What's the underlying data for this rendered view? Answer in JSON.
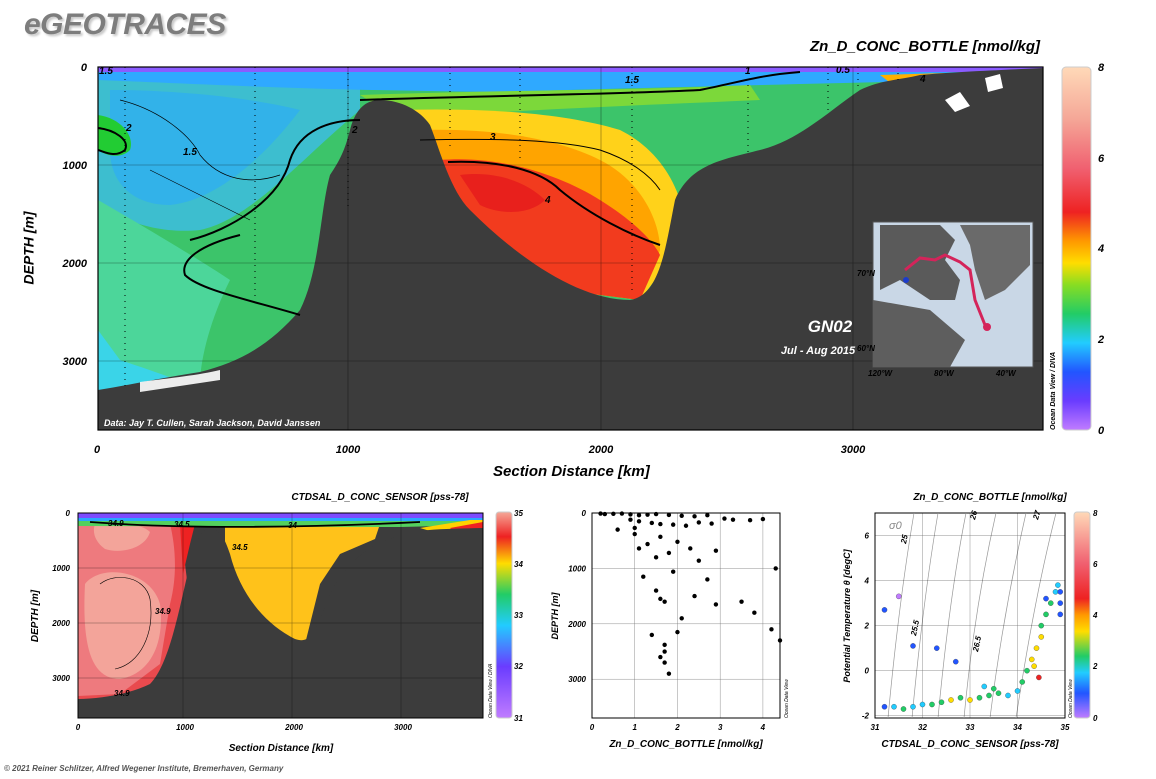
{
  "brand": "eGEOTRACES",
  "copyright": "© 2021 Reiner Schlitzer, Alfred Wegener Institute, Bremerhaven, Germany",
  "colors": {
    "land": "#3c3c3c",
    "colorbar_stops": [
      "#c07cff",
      "#6a3cff",
      "#2255ff",
      "#22ccff",
      "#22cc55",
      "#99dd22",
      "#ffcc00",
      "#ff9900",
      "#ee2222",
      "#f06070",
      "#f5b5a0",
      "#ffd9b8"
    ]
  },
  "main": {
    "title": "Zn_D_CONC_BOTTLE [nmol/kg]",
    "xlabel": "Section Distance [km]",
    "ylabel": "DEPTH [m]",
    "cruise": "GN02",
    "cruise_date": "Jul - Aug 2015",
    "credit": "Data: Jay T. Cullen, Sarah Jackson, David Janssen",
    "odv_tag": "Ocean Data View / DIVA",
    "x_ticks": [
      "0",
      "1000",
      "2000",
      "3000"
    ],
    "y_ticks": [
      "0",
      "1000",
      "2000",
      "3000"
    ],
    "colorbar_ticks": [
      "0",
      "2",
      "4",
      "6",
      "8"
    ],
    "contour_labels": [
      "1.5",
      "2",
      "1.5",
      "2",
      "3",
      "1.5",
      "4",
      "1",
      "0.5",
      "4"
    ],
    "map_ticks": [
      "70°N",
      "60°N",
      "120°W",
      "80°W",
      "40°W"
    ]
  },
  "sal": {
    "title": "CTDSAL_D_CONC_SENSOR [pss-78]",
    "xlabel": "Section Distance [km]",
    "ylabel": "DEPTH [m]",
    "odv_tag": "Ocean Data View / DIVA",
    "x_ticks": [
      "0",
      "1000",
      "2000",
      "3000"
    ],
    "y_ticks": [
      "0",
      "1000",
      "2000",
      "3000"
    ],
    "colorbar_ticks": [
      "31",
      "32",
      "33",
      "34",
      "35"
    ],
    "contour_labels": [
      "34.9",
      "34.5",
      "34",
      "34.5",
      "34.9",
      "34.9"
    ]
  },
  "scatter": {
    "xlabel": "Zn_D_CONC_BOTTLE [nmol/kg]",
    "ylabel": "DEPTH [m]",
    "odv_tag": "Ocean Data View",
    "x_ticks": [
      "0",
      "1",
      "2",
      "3",
      "4"
    ],
    "y_ticks": [
      "0",
      "1000",
      "2000",
      "3000"
    ]
  },
  "ts": {
    "title": "Zn_D_CONC_BOTTLE [nmol/kg]",
    "xlabel": "CTDSAL_D_CONC_SENSOR [pss-78]",
    "ylabel": "Potential Temperature θ [degC]",
    "sigma_label": "σ0",
    "odv_tag": "Ocean Data View",
    "x_ticks": [
      "31",
      "32",
      "33",
      "34",
      "35"
    ],
    "y_ticks": [
      "-2",
      "0",
      "2",
      "4",
      "6"
    ],
    "colorbar_ticks": [
      "0",
      "2",
      "4",
      "6",
      "8"
    ],
    "isopycnal_labels": [
      "25",
      "25.5",
      "26",
      "26.5",
      "27"
    ]
  },
  "chart_data": [
    {
      "type": "heatmap",
      "title": "Zn_D_CONC_BOTTLE [nmol/kg]",
      "xlabel": "Section Distance [km]",
      "ylabel": "DEPTH [m]",
      "xlim": [
        0,
        3770
      ],
      "ylim": [
        3700,
        0
      ],
      "colorbar_range": [
        0,
        8
      ],
      "bathymetry": [
        [
          0,
          3300
        ],
        [
          200,
          3150
        ],
        [
          500,
          2900
        ],
        [
          800,
          2300
        ],
        [
          900,
          1100
        ],
        [
          1000,
          600
        ],
        [
          1100,
          330
        ],
        [
          1250,
          350
        ],
        [
          1400,
          750
        ],
        [
          1600,
          1700
        ],
        [
          1900,
          2200
        ],
        [
          2100,
          2350
        ],
        [
          2250,
          1700
        ],
        [
          2400,
          1000
        ],
        [
          2600,
          750
        ],
        [
          2800,
          600
        ],
        [
          3000,
          250
        ],
        [
          3200,
          150
        ],
        [
          3400,
          450
        ],
        [
          3600,
          150
        ],
        [
          3770,
          0
        ]
      ],
      "contours": [
        1.5,
        2,
        3,
        4
      ]
    },
    {
      "type": "heatmap",
      "title": "CTDSAL_D_CONC_SENSOR [pss-78]",
      "xlabel": "Section Distance [km]",
      "ylabel": "DEPTH [m]",
      "xlim": [
        0,
        3770
      ],
      "ylim": [
        3700,
        0
      ],
      "colorbar_range": [
        31,
        35
      ]
    },
    {
      "type": "scatter",
      "xlabel": "Zn_D_CONC_BOTTLE [nmol/kg]",
      "ylabel": "DEPTH [m]",
      "xlim": [
        0,
        4.4
      ],
      "ylim": [
        3700,
        0
      ],
      "points": [
        [
          0.2,
          10
        ],
        [
          0.3,
          20
        ],
        [
          0.5,
          15
        ],
        [
          0.7,
          10
        ],
        [
          0.9,
          25
        ],
        [
          1.1,
          40
        ],
        [
          1.3,
          30
        ],
        [
          1.5,
          20
        ],
        [
          1.8,
          35
        ],
        [
          2.1,
          50
        ],
        [
          2.4,
          60
        ],
        [
          2.7,
          40
        ],
        [
          3.1,
          100
        ],
        [
          3.3,
          120
        ],
        [
          3.7,
          130
        ],
        [
          4.0,
          110
        ],
        [
          0.9,
          120
        ],
        [
          1.1,
          150
        ],
        [
          1.4,
          180
        ],
        [
          1.6,
          200
        ],
        [
          1.9,
          210
        ],
        [
          2.2,
          230
        ],
        [
          2.5,
          170
        ],
        [
          2.8,
          190
        ],
        [
          1.0,
          380
        ],
        [
          1.3,
          560
        ],
        [
          1.6,
          430
        ],
        [
          2.0,
          520
        ],
        [
          2.3,
          640
        ],
        [
          1.1,
          640
        ],
        [
          1.5,
          800
        ],
        [
          1.8,
          720
        ],
        [
          2.5,
          860
        ],
        [
          2.9,
          680
        ],
        [
          1.2,
          1150
        ],
        [
          1.9,
          1060
        ],
        [
          2.7,
          1200
        ],
        [
          1.5,
          1400
        ],
        [
          1.6,
          1550
        ],
        [
          1.7,
          1600
        ],
        [
          2.4,
          1500
        ],
        [
          2.9,
          1650
        ],
        [
          3.5,
          1600
        ],
        [
          3.8,
          1800
        ],
        [
          1.4,
          2200
        ],
        [
          1.7,
          2380
        ],
        [
          1.7,
          2500
        ],
        [
          1.6,
          2600
        ],
        [
          1.7,
          2700
        ],
        [
          1.8,
          2900
        ],
        [
          2.0,
          2150
        ],
        [
          2.1,
          1900
        ],
        [
          4.2,
          2100
        ],
        [
          4.4,
          2300
        ],
        [
          4.3,
          1000
        ],
        [
          0.6,
          300
        ],
        [
          1.0,
          270
        ]
      ]
    },
    {
      "type": "scatter",
      "title": "Zn_D_CONC_BOTTLE [nmol/kg]",
      "xlabel": "CTDSAL_D_CONC_SENSOR [pss-78]",
      "ylabel": "Potential Temperature θ [degC]",
      "xlim": [
        31,
        35
      ],
      "ylim": [
        -2.1,
        7
      ],
      "colorbar_range": [
        0,
        8
      ],
      "points": [
        [
          31.2,
          -1.6,
          1.5
        ],
        [
          31.4,
          -1.6,
          2
        ],
        [
          31.6,
          -1.7,
          2.5
        ],
        [
          31.8,
          -1.6,
          1.8
        ],
        [
          32.0,
          -1.5,
          2.2
        ],
        [
          32.2,
          -1.5,
          2.8
        ],
        [
          32.4,
          -1.4,
          3.1
        ],
        [
          32.6,
          -1.3,
          3.5
        ],
        [
          32.8,
          -1.2,
          3.2
        ],
        [
          33.0,
          -1.3,
          3.8
        ],
        [
          33.2,
          -1.2,
          3.0
        ],
        [
          33.4,
          -1.1,
          2.6
        ],
        [
          33.6,
          -1.0,
          2.4
        ],
        [
          33.8,
          -1.1,
          2.0
        ],
        [
          34.0,
          -0.9,
          2.3
        ],
        [
          34.1,
          -0.5,
          2.9
        ],
        [
          34.2,
          0.0,
          3.1
        ],
        [
          34.3,
          0.5,
          3.4
        ],
        [
          34.4,
          1.0,
          3.6
        ],
        [
          34.5,
          1.5,
          3.3
        ],
        [
          34.5,
          2.0,
          3.0
        ],
        [
          34.6,
          2.5,
          2.8
        ],
        [
          34.7,
          3.0,
          2.5
        ],
        [
          34.8,
          3.5,
          2.2
        ],
        [
          34.85,
          3.8,
          1.8
        ],
        [
          34.9,
          3.5,
          1.5
        ],
        [
          34.9,
          3.0,
          1.3
        ],
        [
          34.9,
          2.5,
          1.6
        ],
        [
          31.5,
          3.3,
          0.8
        ],
        [
          31.2,
          2.7,
          1.2
        ],
        [
          31.8,
          1.1,
          1.0
        ],
        [
          32.3,
          1.0,
          1.5
        ],
        [
          32.7,
          0.4,
          1.7
        ],
        [
          33.3,
          -0.7,
          2.0
        ],
        [
          33.5,
          -0.8,
          2.4
        ],
        [
          34.45,
          -0.3,
          5.0
        ],
        [
          34.35,
          0.2,
          3.7
        ],
        [
          34.6,
          3.2,
          1.1
        ]
      ]
    }
  ]
}
